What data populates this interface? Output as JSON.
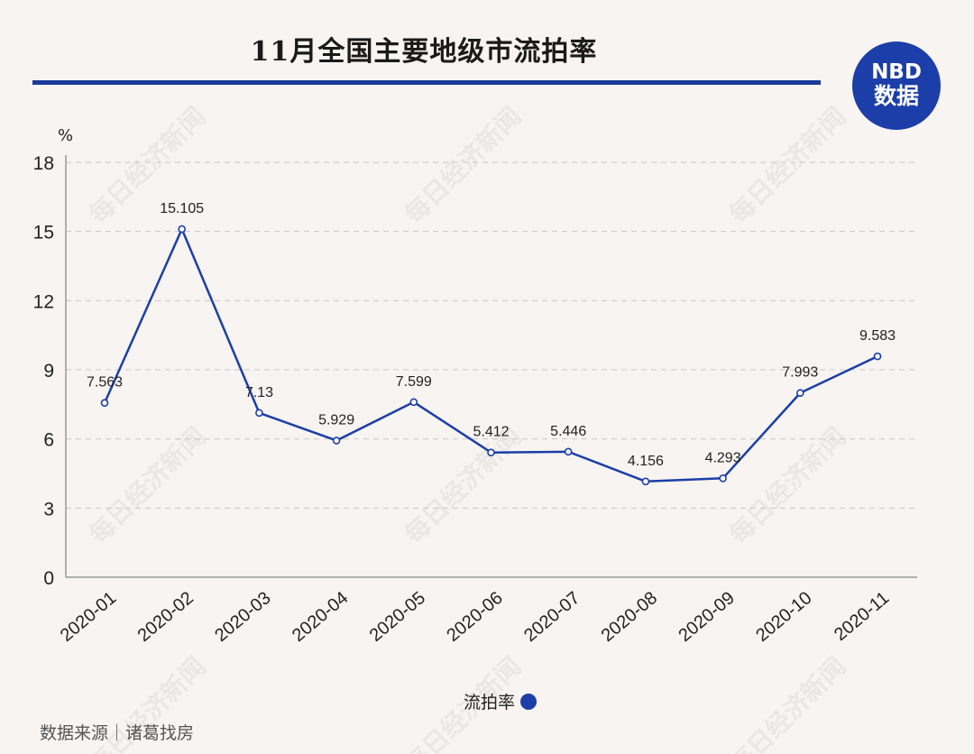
{
  "header": {
    "title": "11月全国主要地级市流拍率",
    "logo_line1": "NBD",
    "logo_line2": "数据"
  },
  "watermark": "每日经济新闻",
  "source": "数据来源｜诸葛找房",
  "colors": {
    "accent": "#1c3ea8",
    "rule": "#1c3a9b",
    "background": "#f7f4f1"
  },
  "chart_data": {
    "type": "line",
    "title": "11月全国主要地级市流拍率",
    "unit": "%",
    "categories": [
      "2020-01",
      "2020-02",
      "2020-03",
      "2020-04",
      "2020-05",
      "2020-06",
      "2020-07",
      "2020-08",
      "2020-09",
      "2020-10",
      "2020-11"
    ],
    "series": [
      {
        "name": "流拍率",
        "values": [
          7.563,
          15.105,
          7.13,
          5.929,
          7.599,
          5.412,
          5.446,
          4.156,
          4.293,
          7.993,
          9.583
        ],
        "labels": [
          "7.563",
          "15.105",
          "7.13",
          "5.929",
          "7.599",
          "5.412",
          "5.446",
          "4.156",
          "4.293",
          "7.993",
          "9.583"
        ]
      }
    ],
    "ylim": [
      0,
      18
    ],
    "yticks": [
      "0",
      "3",
      "6",
      "9",
      "12",
      "15",
      "18"
    ],
    "grid": true,
    "legend_position": "bottom"
  }
}
